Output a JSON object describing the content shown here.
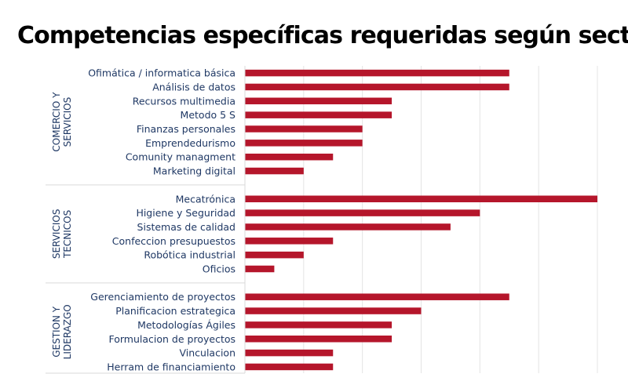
{
  "chart_data": {
    "type": "bar",
    "orientation": "horizontal",
    "title": "Competencias específicas requeridas según sector",
    "xlabel": "",
    "ylabel": "",
    "xlim": [
      0,
      12
    ],
    "grid": true,
    "legend": "none",
    "bar_color": "#b5162b",
    "groups": [
      {
        "name": "COMERCIO Y SERVICIOS",
        "label_lines": [
          "COMERCIO Y",
          "SERVICIOS"
        ],
        "categories": [
          "Ofimática / informatica básica",
          "Análisis de datos",
          "Recursos multimedia",
          "Metodo 5 S",
          "Finanzas personales",
          "Emprendedurismo",
          "Comunity managment",
          "Marketing digital"
        ],
        "values": [
          9,
          9,
          5,
          5,
          4,
          4,
          3,
          2
        ]
      },
      {
        "name": "SERVICIOS TECNICOS",
        "label_lines": [
          "SERVICIOS",
          "TECNICOS"
        ],
        "categories": [
          "Mecatrónica",
          "Higiene y Seguridad",
          "Sistemas de calidad",
          "Confeccion presupuestos",
          "Robótica industrial",
          "Oficios"
        ],
        "values": [
          12,
          8,
          7,
          3,
          2,
          1
        ]
      },
      {
        "name": "GESTION Y LIDERAZGO",
        "label_lines": [
          "GESTION Y",
          "LIDERAZGO"
        ],
        "categories": [
          "Gerenciamiento de proyectos",
          "Planificacion estrategica",
          "Metodologías Ágiles",
          "Formulacion de proyectos ",
          "Vinculacion",
          "Herram de financiamiento"
        ],
        "values": [
          9,
          6,
          5,
          5,
          3,
          3
        ]
      }
    ]
  }
}
